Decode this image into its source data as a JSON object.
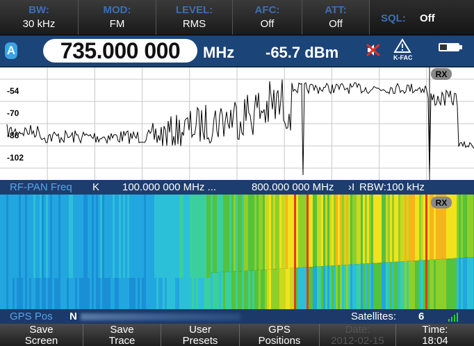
{
  "top_softkeys": [
    {
      "label": "BW:",
      "value": "30 kHz"
    },
    {
      "label": "MOD:",
      "value": "FM"
    },
    {
      "label": "LEVEL:",
      "value": "RMS"
    },
    {
      "label": "AFC:",
      "value": "Off"
    },
    {
      "label": "ATT:",
      "value": "Off"
    }
  ],
  "squelch": {
    "label": "SQL:",
    "value": "Off"
  },
  "status": {
    "trace": "A",
    "frequency": "735.000 000",
    "unit": "MHz",
    "level": "-65.7 dBm",
    "kfac": "K-FAC"
  },
  "spectrum": {
    "level_labels": [
      "-54",
      "-70",
      "-86",
      "-102"
    ],
    "badge": "RX"
  },
  "info_bar": {
    "mode": "RF-PAN Freq",
    "start_marker": "K",
    "start": "100.000 000 MHz ...",
    "stop": "800.000 000 MHz",
    "stop_marker": "›I",
    "rbw": "RBW:100 kHz"
  },
  "waterfall": {
    "badge": "RX"
  },
  "gps_bar": {
    "label": "GPS Pos",
    "latitude": "N",
    "satellites_label": "Satellites:",
    "satellites": "6"
  },
  "bottom_softkeys": [
    {
      "line1": "Save",
      "line2": "Screen"
    },
    {
      "line1": "Save",
      "line2": "Trace"
    },
    {
      "line1": "User",
      "line2": "Presets"
    },
    {
      "line1": "GPS",
      "line2": "Positions"
    },
    {
      "line1": "Date:",
      "line2": "2012-02-15"
    },
    {
      "line1": "Time:",
      "line2": "18:04"
    }
  ]
}
